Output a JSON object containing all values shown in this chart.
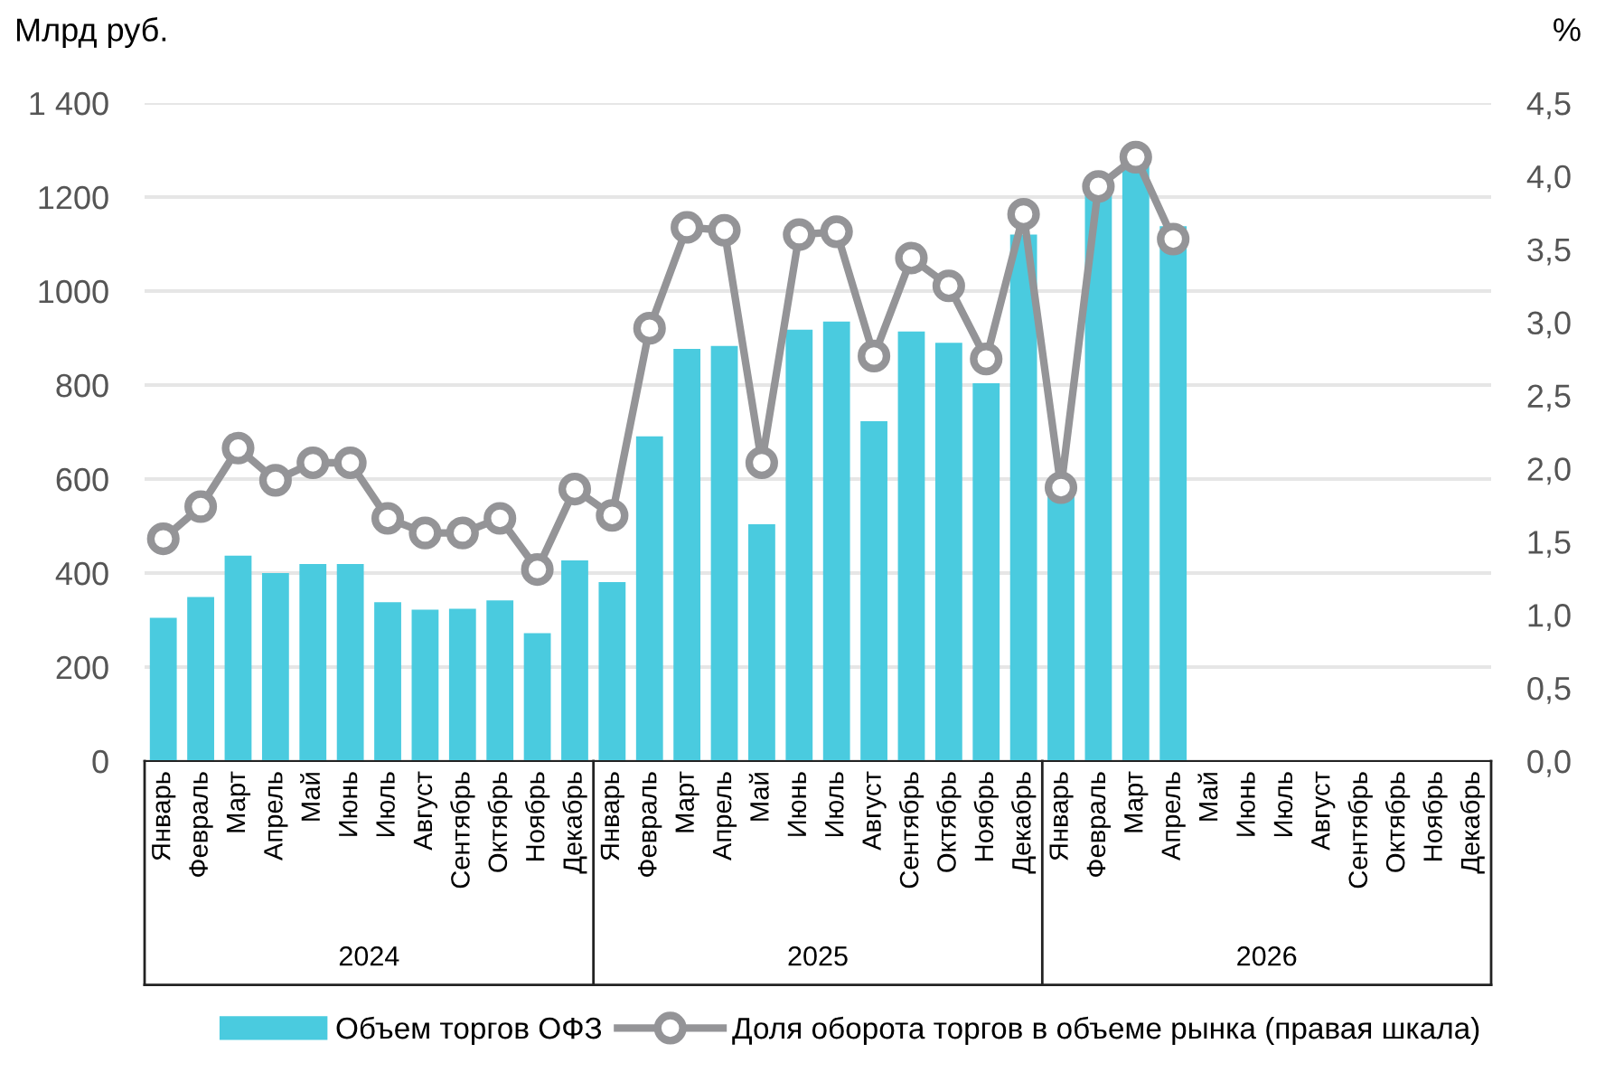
{
  "chart_data": {
    "type": "bar",
    "ylabel": "Млрд руб.",
    "y2label": "%",
    "categories": [
      "Январь",
      "Февраль",
      "Март",
      "Апрель",
      "Май",
      "Июнь",
      "Июль",
      "Август",
      "Сентябрь",
      "Октябрь",
      "Ноябрь",
      "Декабрь",
      "Январь",
      "Февраль",
      "Март",
      "Апрель",
      "Май",
      "Июнь",
      "Июль",
      "Август",
      "Сентябрь",
      "Октябрь",
      "Ноябрь",
      "Декабрь",
      "Январь",
      "Февраль",
      "Март",
      "Апрель",
      "Май",
      "Июнь",
      "Июль",
      "Август",
      "Сентябрь",
      "Октябрь",
      "Ноябрь",
      "Декабрь"
    ],
    "annotations": [
      "2024",
      "2025",
      "2026"
    ],
    "series": [
      {
        "name": "Объем торгов ОФЗ",
        "color": "#4acbdf",
        "values": [
          305,
          349,
          437,
          400,
          419,
          419,
          338,
          322,
          324,
          342,
          272,
          427,
          381,
          691,
          877,
          883,
          504,
          918,
          935,
          723,
          914,
          890,
          804,
          1120,
          565,
          1210,
          1270,
          1138,
          null,
          null,
          null,
          null,
          null,
          null,
          null,
          null
        ]
      },
      {
        "name": "Доля оборота торгов в объеме рынка (правая шкала)",
        "type": "line",
        "axis": "y2",
        "color": "#949497",
        "marker": "circle",
        "values": [
          1.52,
          1.74,
          2.14,
          1.92,
          2.04,
          2.04,
          1.66,
          1.56,
          1.56,
          1.66,
          1.31,
          1.86,
          1.68,
          2.96,
          3.65,
          3.63,
          2.04,
          3.6,
          3.62,
          2.77,
          3.44,
          3.25,
          2.75,
          3.74,
          1.87,
          3.93,
          4.13,
          3.57,
          null,
          null,
          null,
          null,
          null,
          null,
          null,
          null
        ]
      }
    ],
    "ylim": [
      0,
      1400
    ],
    "yticks": [
      0,
      200,
      400,
      600,
      800,
      1000,
      1200,
      {
        "value": 1400,
        "label": "1 400"
      }
    ],
    "y2lim": [
      0,
      4.5
    ],
    "y2ticks": [
      {
        "value": 0,
        "label": "0,0"
      },
      {
        "value": 0.5,
        "label": "0,5"
      },
      {
        "value": 1,
        "label": "1,0"
      },
      {
        "value": 1.5,
        "label": "1,5"
      },
      {
        "value": 2,
        "label": "2,0"
      },
      {
        "value": 2.5,
        "label": "2,5"
      },
      {
        "value": 3,
        "label": "3,0"
      },
      {
        "value": 3.5,
        "label": "3,5"
      },
      {
        "value": 4,
        "label": "4,0"
      },
      {
        "value": 4.5,
        "label": "4,5"
      }
    ],
    "grid": "y",
    "legend": "bottom"
  }
}
